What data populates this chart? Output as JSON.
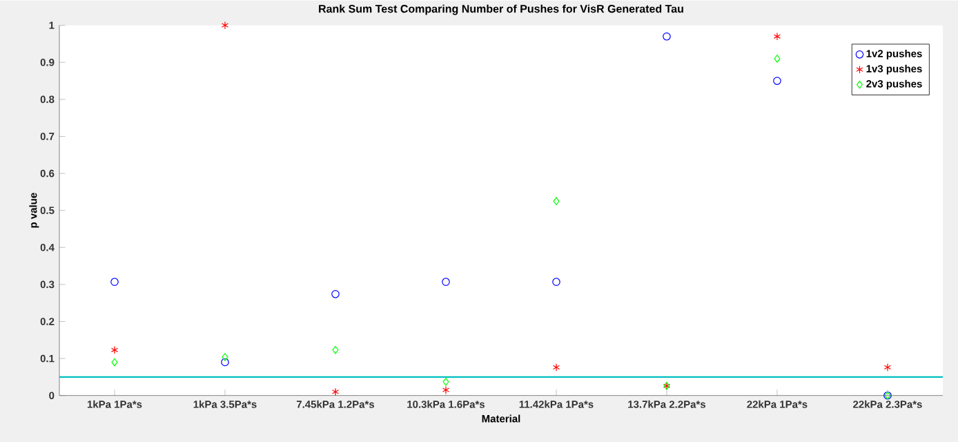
{
  "chart_data": {
    "type": "scatter",
    "title": "Rank Sum Test Comparing Number of Pushes for VisR Generated Tau",
    "xlabel": "Material",
    "ylabel": "p value",
    "categories": [
      "1kPa 1Pa*s",
      "1kPa 3.5Pa*s",
      "7.45kPa 1.2Pa*s",
      "10.3kPa 1.6Pa*s",
      "11.42kPa 1Pa*s",
      "13.7kPa 2.2Pa*s",
      "22kPa 1Pa*s",
      "22kPa 2.3Pa*s"
    ],
    "series": [
      {
        "name": "1v2 pushes",
        "color": "#0000ff",
        "marker": "circle",
        "values": [
          0.307,
          0.09,
          0.274,
          0.307,
          0.307,
          0.97,
          0.85,
          0
        ]
      },
      {
        "name": "1v3 pushes",
        "color": "#ff0000",
        "marker": "cross",
        "values": [
          0.123,
          1.0,
          0.01,
          0.015,
          0.076,
          0.026,
          0.97,
          0.076
        ]
      },
      {
        "name": "2v3 pushes",
        "color": "#00ff00",
        "marker": "diamond",
        "values": [
          0.09,
          0.104,
          0.123,
          0.037,
          0.525,
          0.026,
          0.91,
          0
        ]
      }
    ],
    "ylim": [
      0,
      1
    ],
    "yticks": [
      0,
      0.1,
      0.2,
      0.3,
      0.4,
      0.5,
      0.6,
      0.7,
      0.8,
      0.9,
      1
    ],
    "ref_lines": [
      {
        "axis": "y",
        "value": 0.05,
        "color": "#00bfbf"
      }
    ],
    "grid": false,
    "legend": "top right"
  }
}
